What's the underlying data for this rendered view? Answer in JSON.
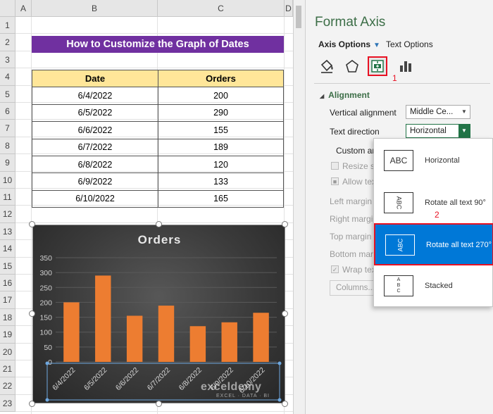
{
  "sheet": {
    "columns": [
      "A",
      "B",
      "C",
      "D"
    ],
    "rows": [
      "1",
      "2",
      "3",
      "4",
      "5",
      "6",
      "7",
      "8",
      "9",
      "10",
      "11",
      "12",
      "13",
      "14",
      "15",
      "16",
      "17",
      "18",
      "19",
      "20",
      "21",
      "22",
      "23"
    ],
    "title": "How to Customize the Graph of Dates",
    "table": {
      "headers": [
        "Date",
        "Orders"
      ],
      "rows": [
        [
          "6/4/2022",
          "200"
        ],
        [
          "6/5/2022",
          "290"
        ],
        [
          "6/6/2022",
          "155"
        ],
        [
          "6/7/2022",
          "189"
        ],
        [
          "6/8/2022",
          "120"
        ],
        [
          "6/9/2022",
          "133"
        ],
        [
          "6/10/2022",
          "165"
        ]
      ]
    }
  },
  "chart_data": {
    "type": "bar",
    "title": "Orders",
    "categories": [
      "6/4/2022",
      "6/5/2022",
      "6/6/2022",
      "6/7/2022",
      "6/8/2022",
      "6/9/2022",
      "6/10/2022"
    ],
    "values": [
      200,
      290,
      155,
      189,
      120,
      133,
      165
    ],
    "yticks": [
      "0",
      "50",
      "100",
      "150",
      "200",
      "250",
      "300",
      "350"
    ],
    "ylim": [
      0,
      350
    ],
    "bar_color": "#ed7d31",
    "grid": true,
    "xlabel": "",
    "ylabel": ""
  },
  "pane": {
    "title": "Format Axis",
    "tabs": {
      "axis_options": "Axis Options",
      "text_options": "Text Options"
    },
    "annotations": {
      "one": "1",
      "two": "2"
    },
    "section": "Alignment",
    "props": {
      "vertical_alignment": "Vertical alignment",
      "vertical_alignment_value": "Middle Ce...",
      "text_direction": "Text direction",
      "text_direction_value": "Horizontal",
      "custom_angle": "Custom an",
      "resize_shape": "Resize sha",
      "allow_text": "Allow tex",
      "left_margin": "Left margin",
      "right_margin": "Right margi",
      "top_margin": "Top margin",
      "bottom_margin": "Bottom marg",
      "wrap_text": "Wrap text",
      "columns": "Columns..."
    }
  },
  "menu": {
    "items": [
      {
        "thumb": "ABC",
        "label": "Horizontal"
      },
      {
        "thumb": "ABC",
        "label": "Rotate all text 90°"
      },
      {
        "thumb": "ABC",
        "label": "Rotate all text 270°"
      },
      {
        "thumb": "ABC",
        "label": "Stacked"
      }
    ]
  },
  "watermark": {
    "main": "exceldemy",
    "sub": "EXCEL · DATA · BI"
  },
  "colors": {
    "accent_green": "#217346",
    "highlight_red": "#e81123",
    "selection_blue": "#0078d7",
    "title_purple": "#7030a0",
    "header_yellow": "#ffe699"
  }
}
